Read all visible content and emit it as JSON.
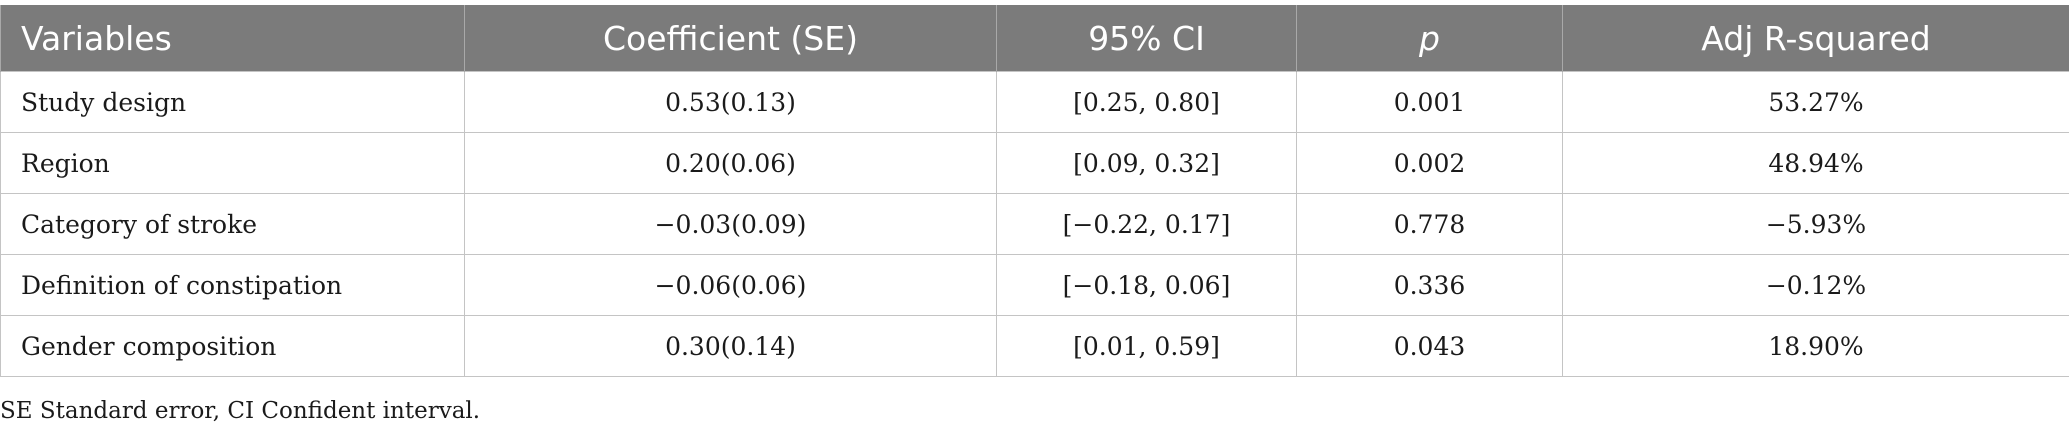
{
  "table": {
    "headers": [
      "Variables",
      "Coefficient (SE)",
      "95% CI",
      "p",
      "Adj R-squared"
    ],
    "rows": [
      [
        "Study design",
        "0.53(0.13)",
        "[0.25, 0.80]",
        "0.001",
        "53.27%"
      ],
      [
        "Region",
        "0.20(0.06)",
        "[0.09, 0.32]",
        "0.002",
        "48.94%"
      ],
      [
        "Category of stroke",
        "−0.03(0.09)",
        "[−0.22, 0.17]",
        "0.778",
        "−5.93%"
      ],
      [
        "Definition of constipation",
        "−0.06(0.06)",
        "[−0.18, 0.06]",
        "0.336",
        "−0.12%"
      ],
      [
        "Gender composition",
        "0.30(0.14)",
        "[0.01, 0.59]",
        "0.043",
        "18.90%"
      ]
    ]
  },
  "footnote": "SE Standard error, CI Confident interval.",
  "colors": {
    "header_background": "#7b7b7b",
    "header_text": "#ffffff",
    "grid_line": "#c4c4c4"
  }
}
